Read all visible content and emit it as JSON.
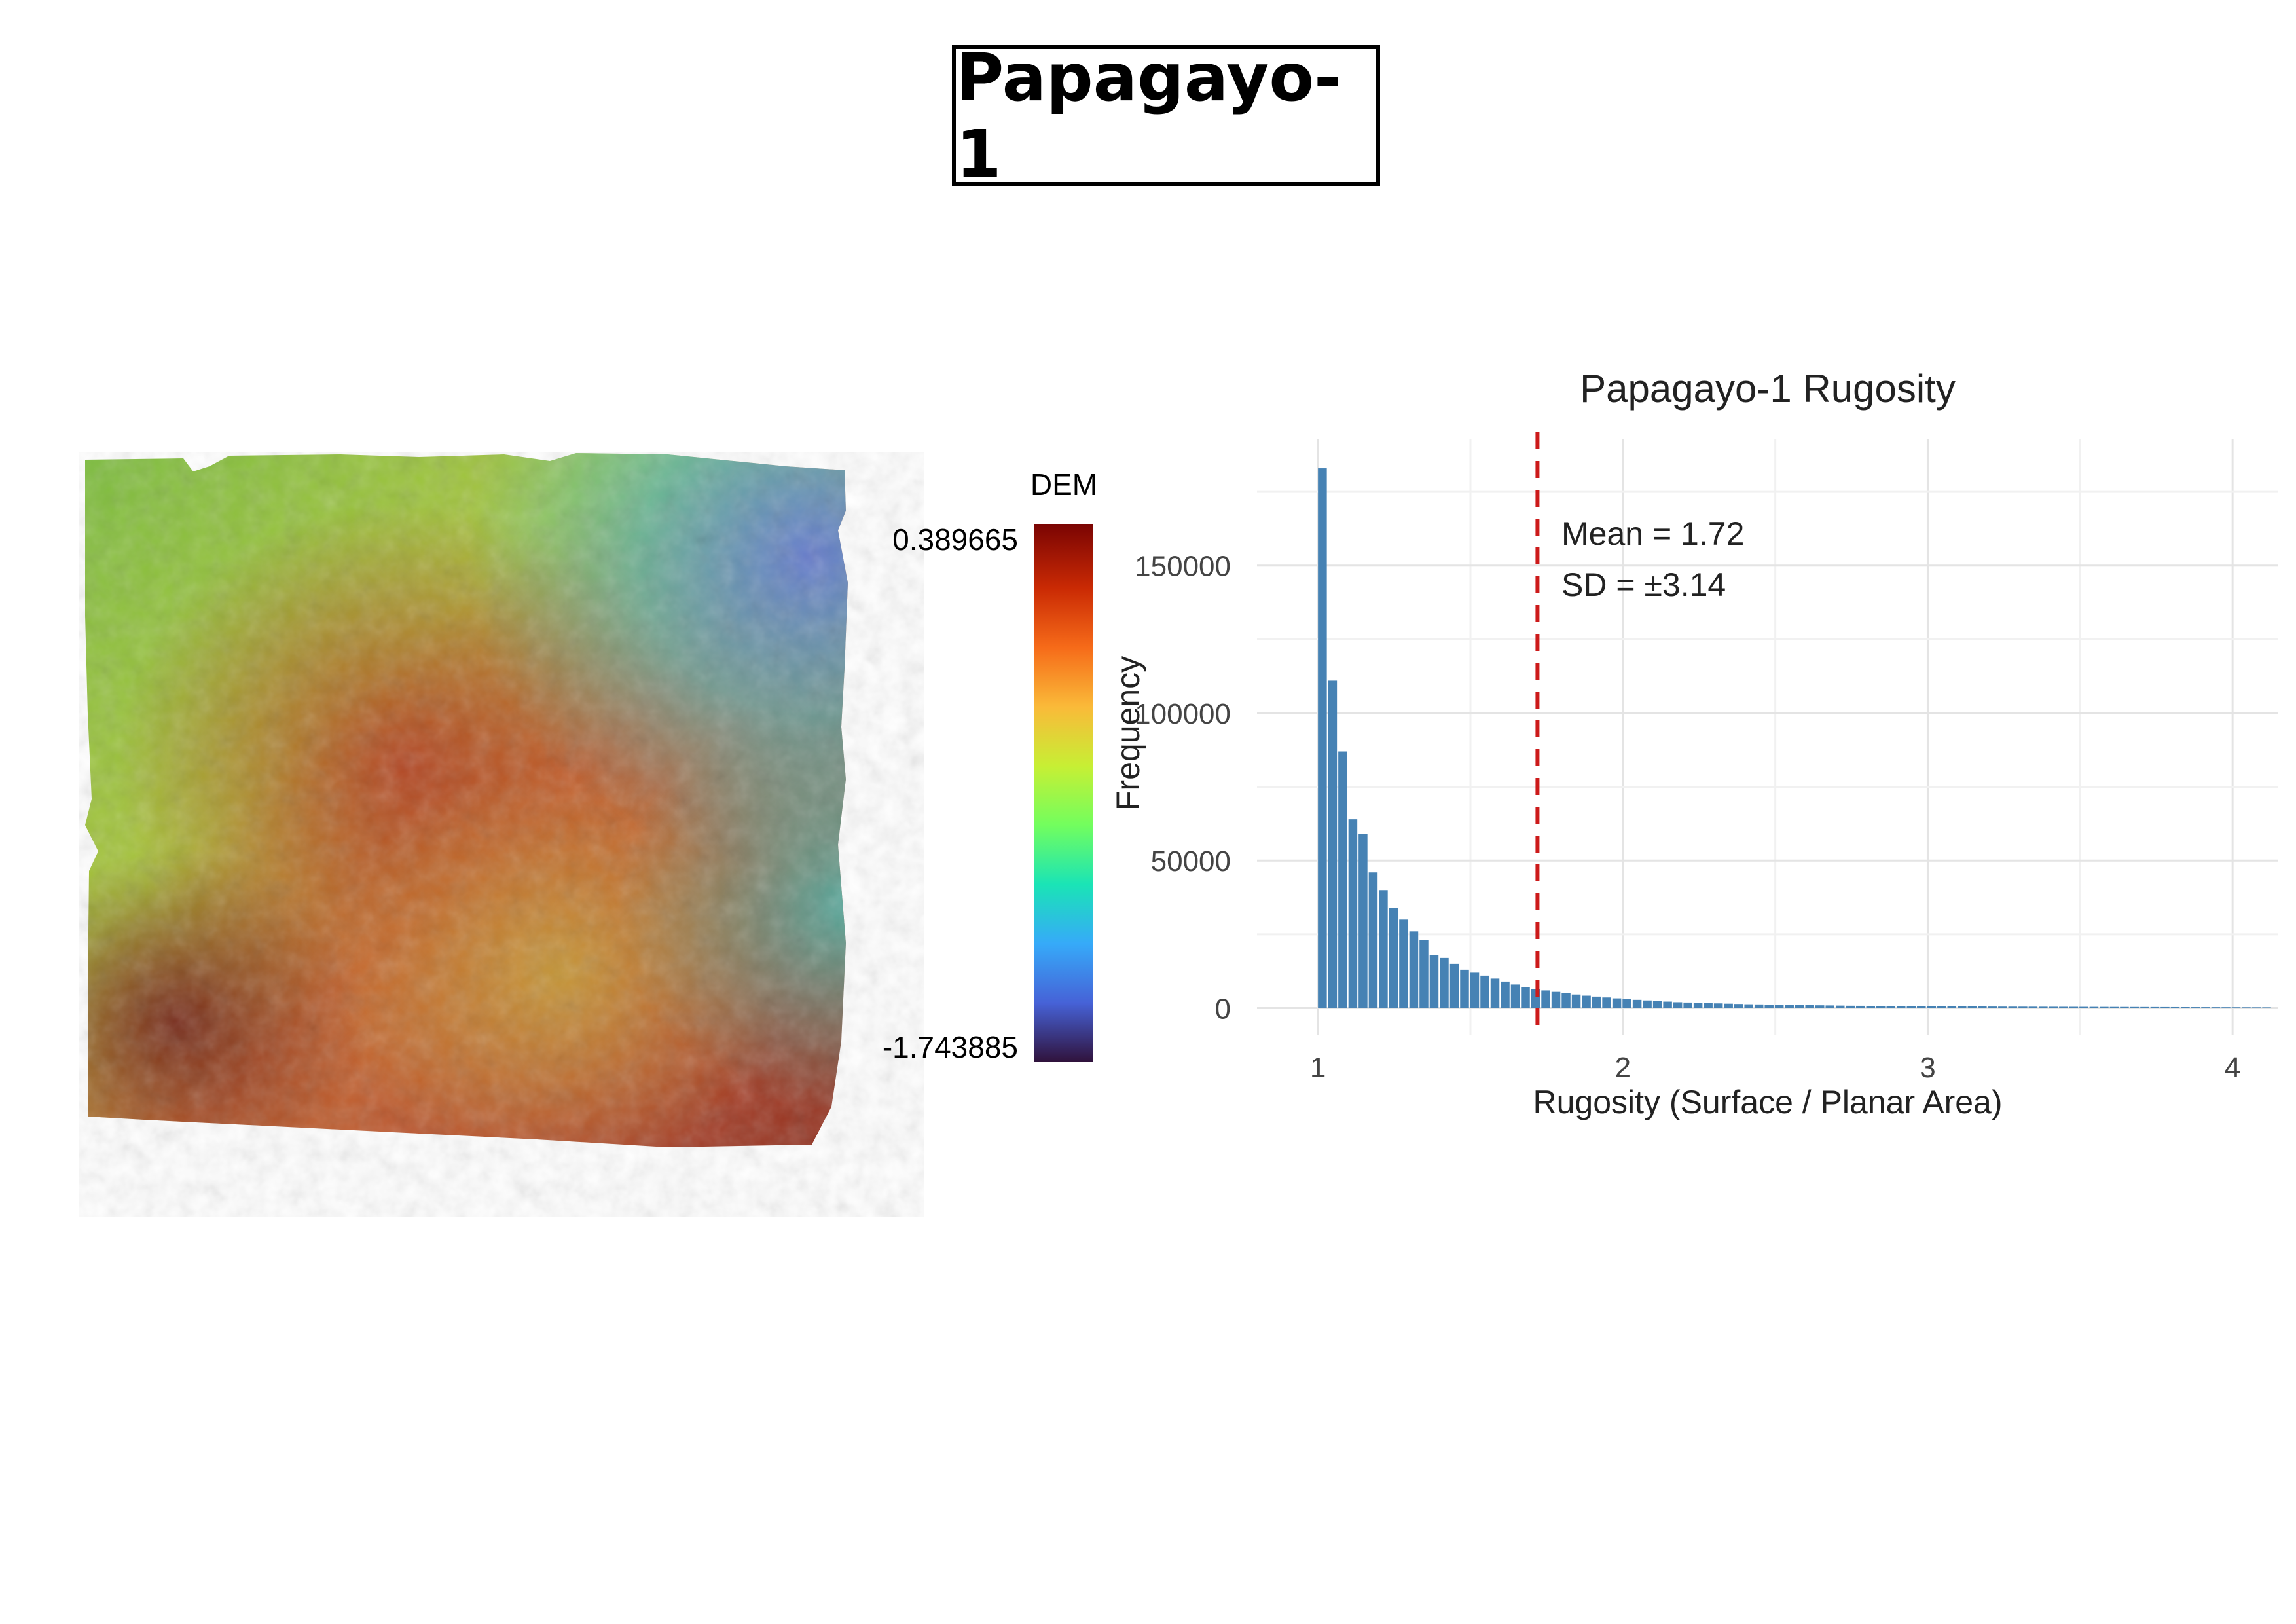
{
  "page_title": "Papagayo-1",
  "dem": {
    "legend_title": "DEM",
    "max_label": "0.389665",
    "min_label": "-1.743885",
    "colormap": [
      "#30123b",
      "#4662d7",
      "#36aaf9",
      "#1ae4b6",
      "#72fe5e",
      "#c7ef34",
      "#faba39",
      "#f66b19",
      "#ca2a04",
      "#7a0403"
    ]
  },
  "chart_data": {
    "type": "bar",
    "title": "Papagayo-1 Rugosity",
    "xlabel": "Rugosity (Surface / Planar Area)",
    "ylabel": "Frequency",
    "xlim": [
      0.8,
      4.15
    ],
    "ylim": [
      -9000,
      193000
    ],
    "x_ticks": [
      1,
      2,
      3,
      4
    ],
    "x_tick_labels": [
      "1",
      "2",
      "3",
      "4"
    ],
    "y_ticks": [
      0,
      50000,
      100000,
      150000
    ],
    "y_tick_labels": [
      "0",
      "50000",
      "100000",
      "150000"
    ],
    "bin_start": 1.0,
    "bin_width": 0.0333,
    "values": [
      183000,
      111000,
      87000,
      64000,
      59000,
      46000,
      40000,
      34000,
      30000,
      26000,
      23000,
      18000,
      17000,
      15000,
      13000,
      12000,
      11000,
      10000,
      9000,
      8000,
      7000,
      6500,
      6000,
      5500,
      5000,
      4600,
      4200,
      3900,
      3600,
      3300,
      3000,
      2800,
      2600,
      2400,
      2200,
      2000,
      1900,
      1800,
      1700,
      1600,
      1500,
      1400,
      1300,
      1250,
      1200,
      1150,
      1100,
      1050,
      1000,
      950,
      900,
      850,
      800,
      780,
      760,
      740,
      720,
      700,
      680,
      660,
      640,
      620,
      600,
      580,
      560,
      540,
      520,
      500,
      490,
      480,
      470,
      460,
      450,
      440,
      430,
      420,
      410,
      400,
      390,
      380,
      370,
      360,
      350,
      340,
      330,
      320,
      310,
      300,
      290,
      280,
      270,
      260,
      250,
      240
    ],
    "bar_color": "#4682b4",
    "mean_line": {
      "x": 1.72,
      "color": "#cc1a1a"
    },
    "annotations": [
      "Mean = 1.72",
      "SD = ±3.14"
    ],
    "grid": true
  }
}
